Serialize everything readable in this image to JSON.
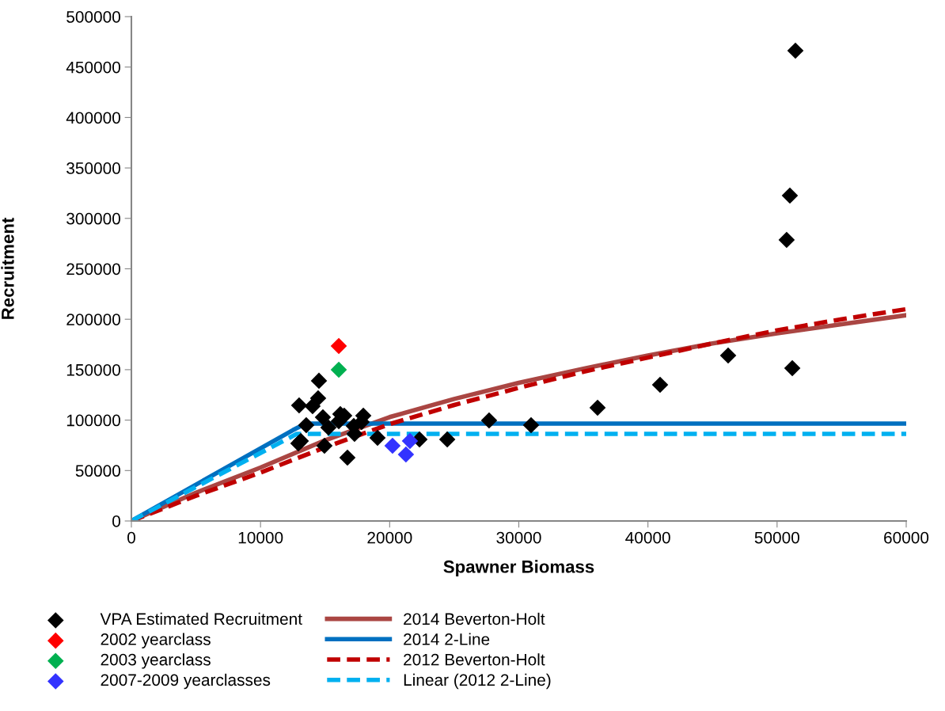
{
  "chart_data": {
    "type": "scatter",
    "xlabel": "Spawner Biomass",
    "ylabel": "Recruitment",
    "xlim": [
      0,
      60000
    ],
    "xticks": [
      0,
      10000,
      20000,
      30000,
      40000,
      50000,
      60000
    ],
    "ylim": [
      0,
      500000
    ],
    "yticks": [
      0,
      50000,
      100000,
      150000,
      200000,
      250000,
      300000,
      350000,
      400000,
      450000,
      500000
    ],
    "grid": false,
    "legend": "bottom",
    "series": [
      {
        "name": "VPA Estimated Recruitment",
        "marker": "diamond",
        "color": "#000000",
        "x": [
          14525,
          14460,
          12990,
          14030,
          14830,
          16180,
          16480,
          17960,
          13540,
          15260,
          16060,
          17220,
          17830,
          13120,
          12930,
          14950,
          17280,
          19060,
          16730,
          22310,
          24460,
          27700,
          30950,
          36100,
          40940,
          46210,
          51180,
          50740,
          50990,
          51420
        ],
        "values": [
          139000,
          121700,
          114600,
          113800,
          102800,
          106000,
          104400,
          104400,
          95000,
          92600,
          98900,
          94200,
          98100,
          79300,
          76900,
          74600,
          86300,
          82400,
          62800,
          80800,
          80800,
          99700,
          95000,
          112300,
          135000,
          164000,
          151500,
          278700,
          322600,
          466200
        ]
      },
      {
        "name": "2002 yearclass",
        "marker": "diamond",
        "color": "#ff0000",
        "x": [
          16060
        ],
        "values": [
          173500
        ]
      },
      {
        "name": "2003 yearclass",
        "marker": "diamond",
        "color": "#00b050",
        "x": [
          16060
        ],
        "values": [
          149900
        ]
      },
      {
        "name": "2007-2009 yearclasses",
        "marker": "diamond",
        "color": "#3333ff",
        "x": [
          20220,
          21260,
          21570
        ],
        "values": [
          74600,
          65900,
          79300
        ]
      },
      {
        "name": "2014 Beverton-Holt",
        "type": "line",
        "line_style": "solid",
        "marker": "none",
        "color": "#aa4643",
        "x": [
          0,
          5000,
          10000,
          15000,
          20000,
          25000,
          30000,
          35000,
          40000,
          45000,
          50000,
          55000,
          60000
        ],
        "values": [
          0,
          28000,
          53000,
          80000,
          103000,
          121000,
          137000,
          151000,
          164000,
          176000,
          186000,
          195000,
          204000
        ]
      },
      {
        "name": "2014 2-Line",
        "type": "line",
        "line_style": "solid",
        "marker": "none",
        "color": "#0070c0",
        "x": [
          0,
          12500,
          13500,
          60000
        ],
        "values": [
          0,
          90000,
          96500,
          96500
        ]
      },
      {
        "name": "2012 Beverton-Holt",
        "type": "line",
        "line_style": "dashed",
        "marker": "none",
        "color": "#c00000",
        "x": [
          0,
          5000,
          10000,
          15000,
          20000,
          25000,
          30000,
          35000,
          40000,
          45000,
          50000,
          55000,
          60000
        ],
        "values": [
          0,
          25000,
          48000,
          73000,
          96000,
          115000,
          132000,
          148000,
          162000,
          176000,
          189000,
          200000,
          210000
        ]
      },
      {
        "name": "Linear (2012 2-Line)",
        "type": "line",
        "line_style": "dashed",
        "marker": "none",
        "color": "#00b0f0",
        "x": [
          0,
          12800,
          60000
        ],
        "values": [
          0,
          86300,
          86300
        ]
      }
    ]
  }
}
